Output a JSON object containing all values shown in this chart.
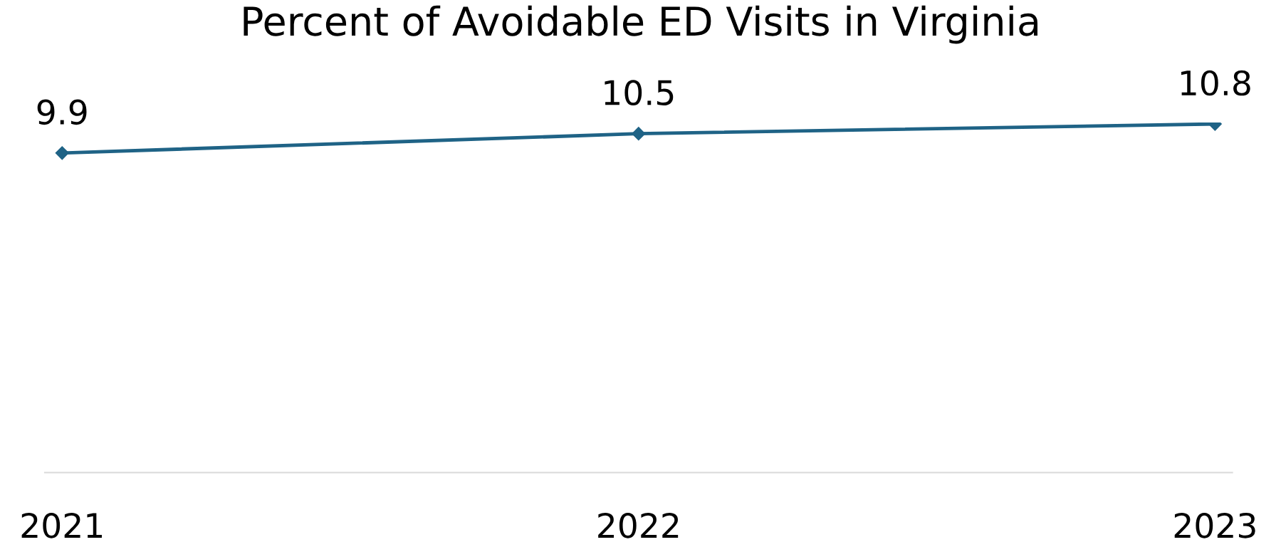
{
  "chart_data": {
    "type": "line",
    "title": "Percent of Avoidable ED Visits in Virginia",
    "categories": [
      "2021",
      "2022",
      "2023"
    ],
    "series": [
      {
        "color": "#1f6386",
        "values": [
          9.9,
          10.5,
          10.8
        ]
      }
    ],
    "marker": "diamond",
    "line_style": "solid",
    "data_labels": true,
    "tick_labels": "x",
    "grid": false,
    "legend": false
  }
}
